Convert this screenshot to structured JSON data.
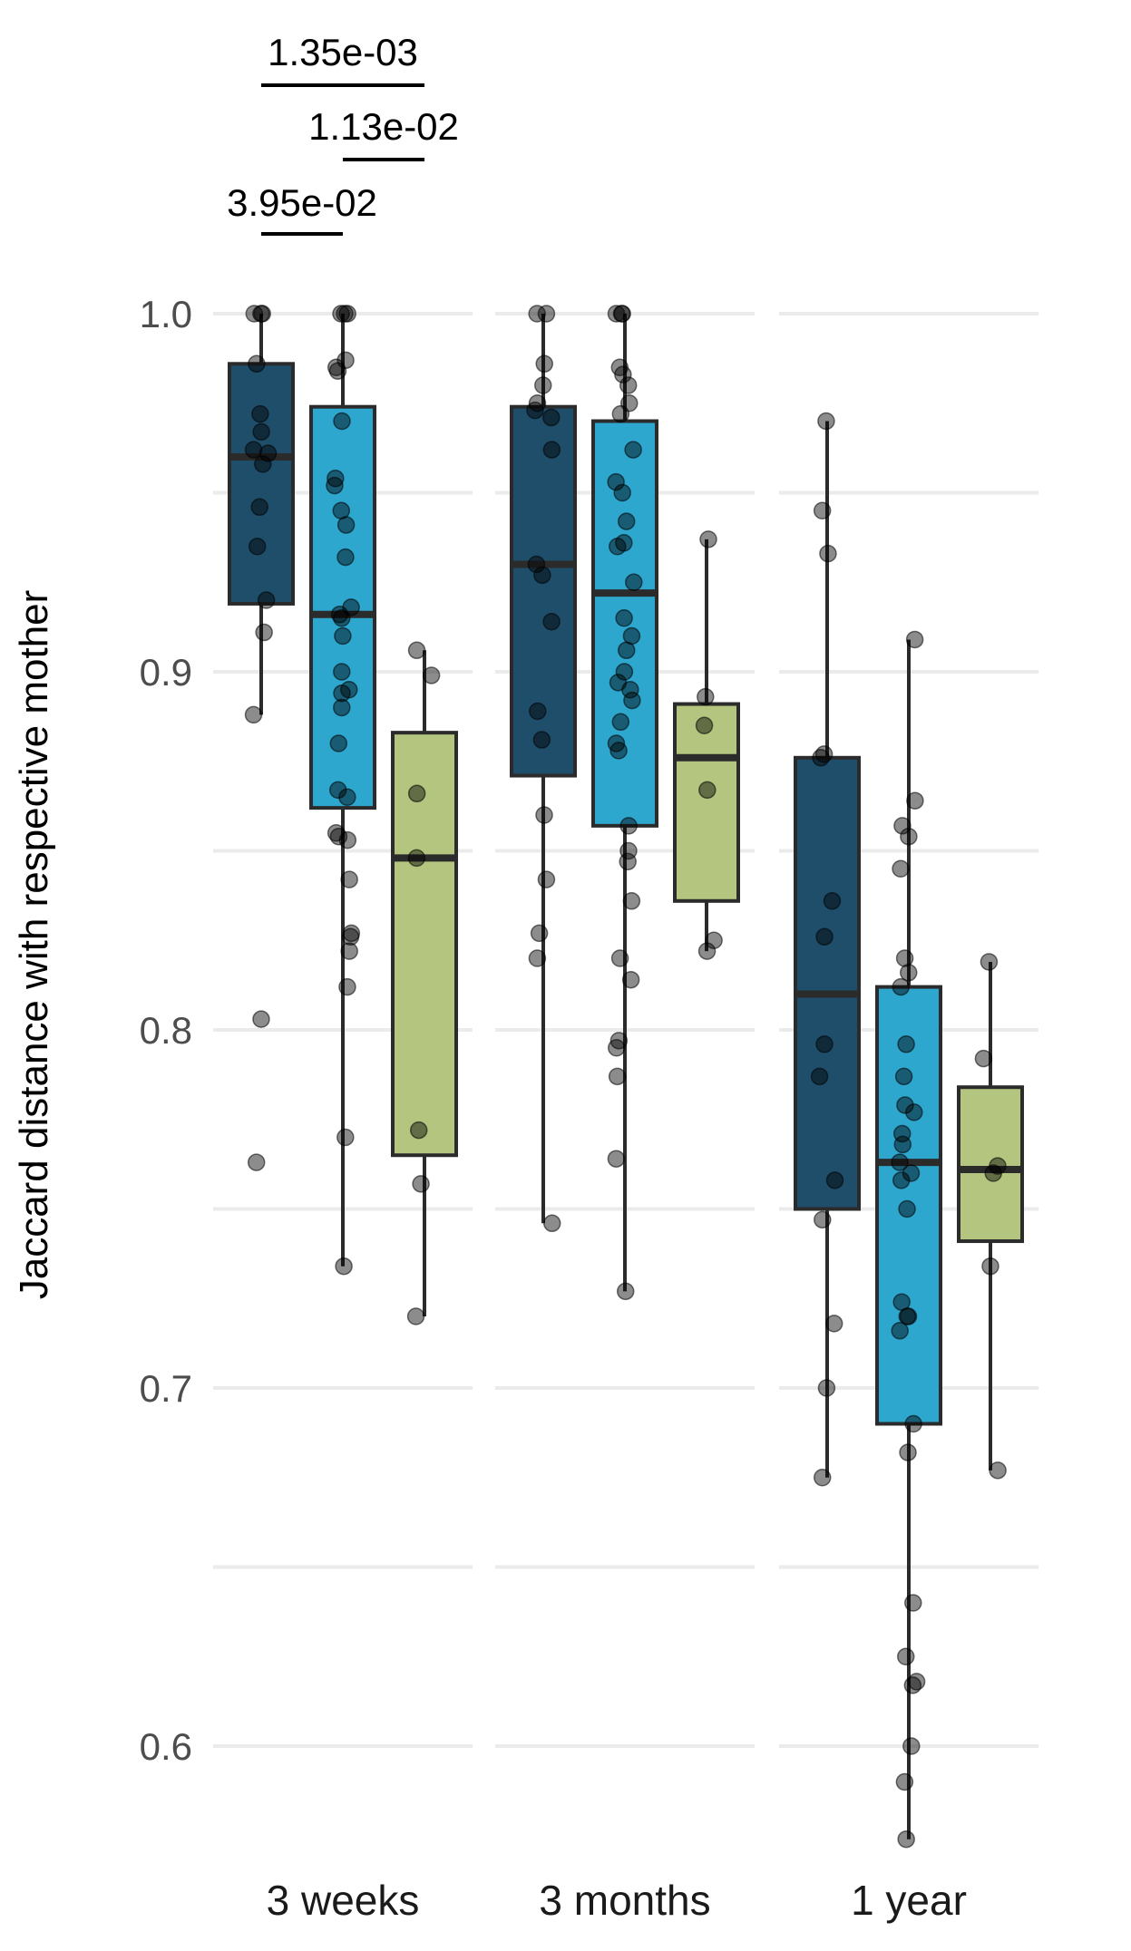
{
  "chart_data": {
    "type": "box",
    "title": "",
    "xlabel": "",
    "ylabel": "Jaccard distance with respective mother",
    "ylim": [
      0.57,
      1.0
    ],
    "y_ticks": [
      0.6,
      0.7,
      0.8,
      0.9,
      1.0
    ],
    "y_tick_labels": [
      "0.6",
      "0.7",
      "0.8",
      "0.9",
      "1.0"
    ],
    "grid": true,
    "legend": "none",
    "categories": [
      "3 weeks",
      "3 months",
      "1 year"
    ],
    "series": [
      {
        "color": "#1f4e6b",
        "boxes": [
          {
            "min": 0.888,
            "q1": 0.919,
            "median": 0.96,
            "q3": 0.986,
            "max": 1.0,
            "points": [
              1.0,
              1.0,
              1.0,
              0.986,
              0.972,
              0.967,
              0.962,
              0.961,
              0.958,
              0.946,
              0.935,
              0.92,
              0.911,
              0.888,
              0.803,
              0.763
            ]
          },
          {
            "min": 0.746,
            "q1": 0.871,
            "median": 0.93,
            "q3": 0.974,
            "max": 1.0,
            "points": [
              1.0,
              1.0,
              0.986,
              0.98,
              0.975,
              0.973,
              0.971,
              0.962,
              0.93,
              0.927,
              0.914,
              0.889,
              0.881,
              0.86,
              0.842,
              0.827,
              0.82,
              0.746
            ]
          },
          {
            "min": 0.675,
            "q1": 0.75,
            "median": 0.81,
            "q3": 0.876,
            "max": 0.97,
            "points": [
              0.97,
              0.945,
              0.933,
              0.877,
              0.876,
              0.836,
              0.826,
              0.796,
              0.787,
              0.758,
              0.747,
              0.718,
              0.7,
              0.675
            ]
          }
        ]
      },
      {
        "color": "#2ea7cf",
        "boxes": [
          {
            "min": 0.734,
            "q1": 0.862,
            "median": 0.916,
            "q3": 0.974,
            "max": 1.0,
            "points": [
              1.0,
              1.0,
              1.0,
              0.987,
              0.985,
              0.984,
              0.97,
              0.954,
              0.952,
              0.945,
              0.941,
              0.932,
              0.918,
              0.916,
              0.915,
              0.91,
              0.9,
              0.895,
              0.894,
              0.89,
              0.88,
              0.867,
              0.865,
              0.855,
              0.854,
              0.853,
              0.842,
              0.827,
              0.826,
              0.822,
              0.812,
              0.77,
              0.734
            ]
          },
          {
            "min": 0.727,
            "q1": 0.857,
            "median": 0.922,
            "q3": 0.97,
            "max": 1.0,
            "points": [
              1.0,
              1.0,
              1.0,
              0.985,
              0.983,
              0.98,
              0.975,
              0.972,
              0.962,
              0.953,
              0.95,
              0.942,
              0.936,
              0.935,
              0.925,
              0.915,
              0.91,
              0.906,
              0.9,
              0.897,
              0.895,
              0.892,
              0.886,
              0.88,
              0.878,
              0.857,
              0.85,
              0.847,
              0.836,
              0.82,
              0.814,
              0.797,
              0.795,
              0.787,
              0.764,
              0.727
            ]
          },
          {
            "min": 0.574,
            "q1": 0.69,
            "median": 0.763,
            "q3": 0.812,
            "max": 0.909,
            "points": [
              0.909,
              0.864,
              0.857,
              0.854,
              0.845,
              0.82,
              0.816,
              0.812,
              0.796,
              0.787,
              0.779,
              0.777,
              0.771,
              0.768,
              0.763,
              0.76,
              0.758,
              0.75,
              0.724,
              0.72,
              0.72,
              0.716,
              0.69,
              0.682,
              0.64,
              0.625,
              0.618,
              0.617,
              0.6,
              0.59,
              0.574
            ]
          }
        ]
      },
      {
        "color": "#b3c57f",
        "boxes": [
          {
            "min": 0.72,
            "q1": 0.765,
            "median": 0.848,
            "q3": 0.883,
            "max": 0.906,
            "points": [
              0.906,
              0.899,
              0.866,
              0.848,
              0.772,
              0.757,
              0.72
            ]
          },
          {
            "min": 0.822,
            "q1": 0.836,
            "median": 0.876,
            "q3": 0.891,
            "max": 0.937,
            "points": [
              0.937,
              0.893,
              0.885,
              0.867,
              0.825,
              0.822
            ]
          },
          {
            "min": 0.677,
            "q1": 0.741,
            "median": 0.761,
            "q3": 0.784,
            "max": 0.819,
            "points": [
              0.819,
              0.792,
              0.762,
              0.76,
              0.734,
              0.677
            ]
          }
        ]
      }
    ],
    "annotations": [
      {
        "text": "1.35e-03",
        "from_series": 0,
        "to_series": 2,
        "category": "3 weeks"
      },
      {
        "text": "1.13e-02",
        "from_series": 1,
        "to_series": 2,
        "category": "3 weeks"
      },
      {
        "text": "3.95e-02",
        "from_series": 0,
        "to_series": 1,
        "category": "3 weeks"
      }
    ]
  }
}
